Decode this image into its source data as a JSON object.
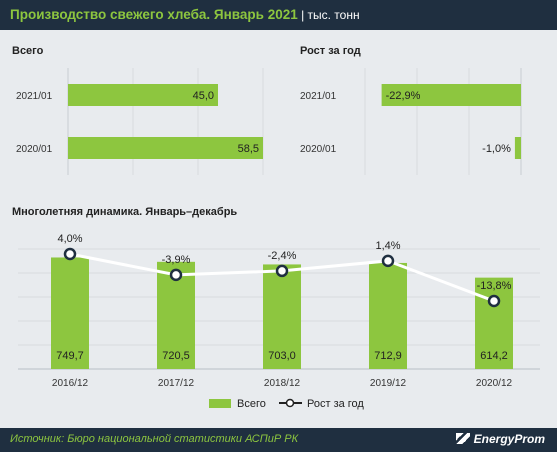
{
  "header": {
    "title": "Производство свежего хлеба. Январь 2021",
    "unit": " | тыс. тонн"
  },
  "colors": {
    "bar": "#8dc63f",
    "header_bg": "#1f2f40",
    "accent_text": "#8dc63f",
    "line": "#ffffff",
    "marker_border": "#1f2f40"
  },
  "chart_data": [
    {
      "type": "bar",
      "orientation": "horizontal",
      "title": "Всего",
      "categories": [
        "2021/01",
        "2020/01"
      ],
      "values": [
        45.0,
        58.5
      ],
      "labels": [
        "45,0",
        "58,5"
      ]
    },
    {
      "type": "bar",
      "orientation": "horizontal",
      "title": "Рост за год",
      "categories": [
        "2021/01",
        "2020/01"
      ],
      "values": [
        -22.9,
        -1.0
      ],
      "labels": [
        "-22,9%",
        "-1,0%"
      ]
    },
    {
      "type": "bar",
      "title": "Многолетняя динамика. Январь–декабрь",
      "categories": [
        "2016/12",
        "2017/12",
        "2018/12",
        "2019/12",
        "2020/12"
      ],
      "series": [
        {
          "name": "Всего",
          "type": "bar",
          "values": [
            749.7,
            720.5,
            703.0,
            712.9,
            614.2
          ],
          "labels": [
            "749,7",
            "720,5",
            "703,0",
            "712,9",
            "614,2"
          ]
        },
        {
          "name": "Рост за год",
          "type": "line",
          "values": [
            4.0,
            -3.9,
            -2.4,
            1.4,
            -13.8
          ],
          "labels": [
            "4,0%",
            "-3,9%",
            "-2,4%",
            "1,4%",
            "-13,8%"
          ]
        }
      ],
      "legend": "bottom-center"
    }
  ],
  "footer": {
    "source": "Источник: Бюро национальной статистики АСПиР РК",
    "logo": "EnergyProm"
  }
}
